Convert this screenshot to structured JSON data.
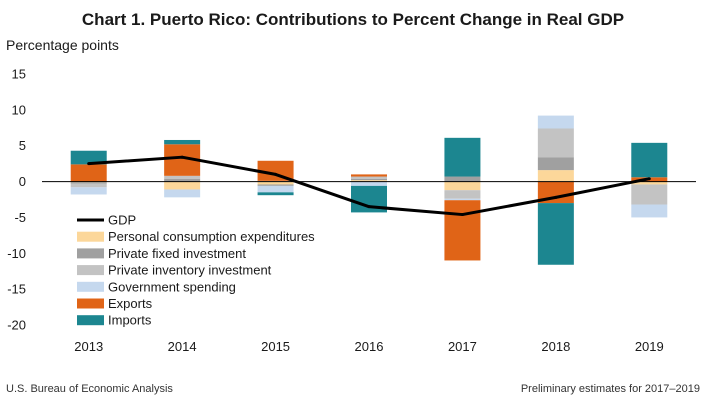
{
  "chart_data": {
    "type": "bar",
    "stacked": true,
    "title": "Chart 1. Puerto Rico: Contributions to Percent Change in Real GDP",
    "ylabel": "Percentage points",
    "xlabel": "",
    "ylim": [
      -20,
      15
    ],
    "yticks": [
      "15",
      "10",
      "5",
      "0",
      "-5",
      "-10",
      "-15",
      "-20"
    ],
    "ytick_values": [
      15,
      10,
      5,
      0,
      -5,
      -10,
      -15,
      -20
    ],
    "categories": [
      "2013",
      "2014",
      "2015",
      "2016",
      "2017",
      "2018",
      "2019"
    ],
    "line": {
      "name": "GDP",
      "color": "#000000",
      "values": [
        2.5,
        3.4,
        1.0,
        -3.5,
        -4.6,
        -2.2,
        0.4
      ]
    },
    "series": [
      {
        "name": "Personal consumption expenditures",
        "color": "#fcd79a",
        "values": [
          -0.1,
          -1.1,
          -0.4,
          0.2,
          -1.2,
          1.6,
          -0.4
        ]
      },
      {
        "name": "Private fixed investment",
        "color": "#a0a0a0",
        "values": [
          -0.2,
          0.4,
          -0.2,
          0.2,
          0.7,
          1.8,
          0.0
        ]
      },
      {
        "name": "Private inventory investment",
        "color": "#c3c3c3",
        "values": [
          -0.5,
          0.4,
          0.1,
          0.3,
          -1.2,
          4.0,
          -2.8
        ]
      },
      {
        "name": "Government spending",
        "color": "#c5d8ee",
        "values": [
          -1.0,
          -1.1,
          -0.9,
          -0.6,
          -0.2,
          1.8,
          -1.8
        ]
      },
      {
        "name": "Exports",
        "color": "#e06417",
        "values": [
          2.4,
          4.4,
          2.8,
          0.3,
          -8.4,
          -3.0,
          0.6
        ]
      },
      {
        "name": "Imports",
        "color": "#1c8690",
        "values": [
          1.9,
          0.6,
          -0.4,
          -3.7,
          5.4,
          -8.6,
          4.8
        ]
      }
    ],
    "legend_placement": "lower-left inside plot"
  },
  "source": "U.S. Bureau of Economic Analysis",
  "note": "Preliminary estimates for 2017–2019"
}
